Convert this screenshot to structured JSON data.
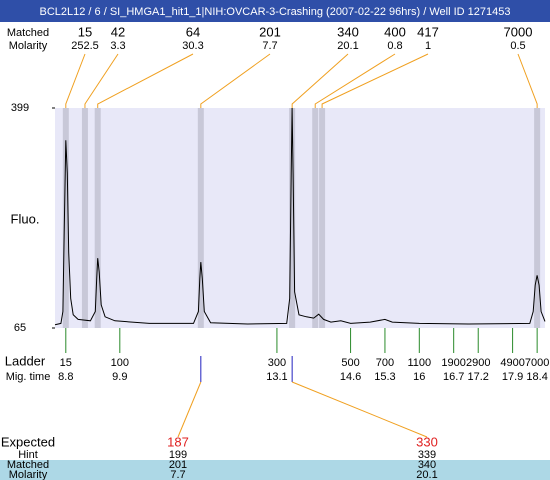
{
  "title": "BCL2L12 / 6 / SI_HMGA1_hit1_1|NIH:OVCAR-3-Crashing (2007-02-22 96hrs) / Well ID 1271453",
  "chart_data": {
    "type": "line",
    "color": "#000000",
    "ylabel": "Fluo.",
    "xlim": [
      8.58,
      18.56
    ],
    "ylim": [
      65,
      399
    ],
    "yticks": [
      65,
      399
    ],
    "x": [
      8.58,
      8.7,
      8.74,
      8.77,
      8.8,
      8.83,
      8.86,
      8.9,
      8.95,
      9.05,
      9.3,
      9.4,
      9.43,
      9.45,
      9.48,
      9.52,
      9.6,
      9.8,
      10.5,
      11.4,
      11.5,
      11.53,
      11.55,
      11.58,
      11.62,
      11.75,
      12.5,
      13.3,
      13.36,
      13.39,
      13.41,
      13.43,
      13.46,
      13.55,
      13.7,
      13.85,
      13.95,
      14.05,
      14.2,
      14.4,
      14.6,
      15.0,
      15.3,
      15.45,
      16.0,
      17.0,
      18.25,
      18.32,
      18.36,
      18.4,
      18.44,
      18.48,
      18.56
    ],
    "values": [
      70,
      72,
      90,
      220,
      350,
      300,
      180,
      110,
      85,
      78,
      76,
      90,
      140,
      171,
      150,
      100,
      82,
      76,
      72,
      72,
      90,
      140,
      165,
      140,
      90,
      73,
      71,
      72,
      110,
      300,
      399,
      300,
      120,
      85,
      82,
      80,
      86,
      78,
      74,
      76,
      72,
      74,
      78,
      74,
      72,
      71,
      72,
      90,
      130,
      145,
      130,
      90,
      75
    ],
    "peaks": {
      "matched_label": "Matched",
      "molarity_label": "Molarity",
      "times": [
        8.8,
        9.19,
        9.45,
        11.55,
        13.41,
        13.88,
        14.02,
        18.4
      ],
      "matched": [
        15,
        42,
        64,
        201,
        340,
        400,
        417,
        7000
      ],
      "molarity": [
        252.5,
        3.3,
        30.3,
        7.7,
        20.1,
        0.8,
        1,
        0.5
      ]
    },
    "ladder": {
      "label": "Ladder",
      "time_label": "Mig. time",
      "sizes": [
        15,
        100,
        300,
        500,
        700,
        1100,
        1900,
        2900,
        4900,
        7000
      ],
      "times": [
        8.8,
        9.9,
        13.1,
        14.6,
        15.3,
        16,
        16.7,
        17.2,
        17.9,
        18.4
      ]
    },
    "expected": {
      "label": "Expected",
      "hint_label": "Hint",
      "matched_label": "Matched",
      "molarity_label": "Molarity",
      "times": [
        11.55,
        13.41
      ],
      "expected": [
        187,
        330
      ],
      "hint": [
        199,
        339
      ],
      "matched": [
        201,
        340
      ],
      "molarity": [
        7.7,
        20.1
      ]
    }
  }
}
